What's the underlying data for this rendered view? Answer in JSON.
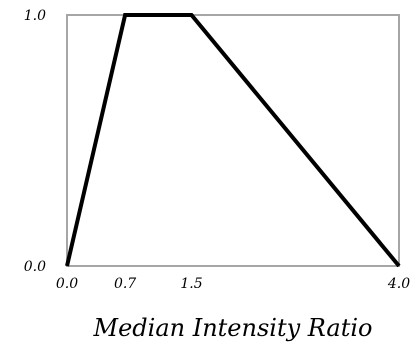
{
  "chart_data": {
    "type": "line",
    "title": "",
    "xlabel": "Median Intensity Ratio",
    "ylabel": "",
    "xlim": [
      0.0,
      4.0
    ],
    "ylim": [
      0.0,
      1.0
    ],
    "x_tick_positions": [
      0.0,
      0.7,
      1.5,
      4.0
    ],
    "x_tick_labels": [
      "0.0",
      "0.7",
      "1.5",
      "4.0"
    ],
    "y_tick_positions": [
      0.0,
      1.0
    ],
    "y_tick_labels": [
      "0.0",
      "1.0"
    ],
    "grid": false,
    "legend": "none",
    "colors": {
      "line": "#000000",
      "frame": "#a6a6a6",
      "background": "#ffffff"
    },
    "series": [
      {
        "x": [
          0.0,
          0.7,
          1.5,
          4.0
        ],
        "y": [
          0.0,
          1.0,
          1.0,
          0.0
        ]
      }
    ]
  }
}
